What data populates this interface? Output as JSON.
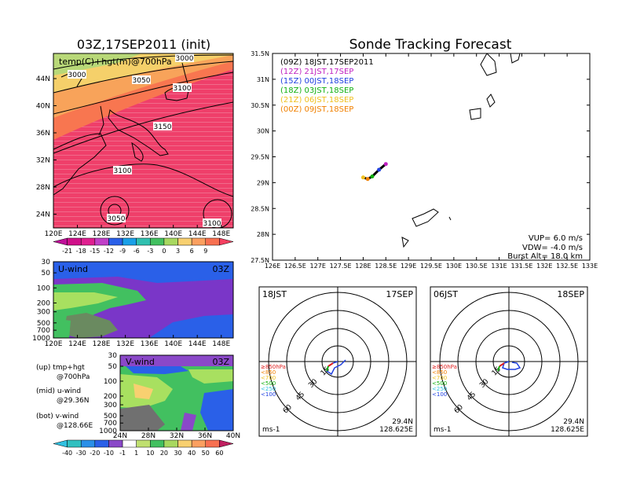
{
  "titles": {
    "left": "03Z,17SEP2011 (init)",
    "right": "Sonde Tracking Forecast"
  },
  "top_map": {
    "label": "temp(C)+hgt(m)@700hPa",
    "lon_ticks": [
      "120E",
      "124E",
      "128E",
      "132E",
      "136E",
      "140E",
      "144E",
      "148E"
    ],
    "lat_ticks": [
      "44N",
      "40N",
      "36N",
      "32N",
      "28N",
      "24N"
    ],
    "contour_labels": [
      "3000",
      "3000",
      "3050",
      "3100",
      "3150",
      "3100",
      "3050",
      "3100"
    ],
    "colorbar_labels": [
      "-21",
      "-18",
      "-15",
      "-12",
      "-9",
      "-6",
      "-3",
      "0",
      "3",
      "6",
      "9"
    ]
  },
  "uwind": {
    "label": "U-wind",
    "time": "03Z",
    "p_ticks": [
      "30",
      "50",
      "100",
      "200",
      "300",
      "500",
      "700",
      "1000"
    ],
    "lon_ticks": [
      "120E",
      "124E",
      "128E",
      "132E",
      "136E",
      "140E",
      "144E",
      "148E"
    ]
  },
  "vwind": {
    "label": "V-wind",
    "time": "03Z",
    "p_ticks": [
      "30",
      "50",
      "100",
      "200",
      "300",
      "500",
      "700",
      "1000"
    ],
    "lat_ticks": [
      "24N",
      "28N",
      "32N",
      "36N",
      "40N"
    ]
  },
  "notes": {
    "up1": "(up) tmp+hgt",
    "up2": "@700hPa",
    "mid1": "(mid) u-wind",
    "mid2": "@29.36N",
    "bot1": "(bot) v-wind",
    "bot2": "@128.66E"
  },
  "wind_colorbar_labels": [
    "-40",
    "-30",
    "-20",
    "-10",
    "-1",
    "1",
    "10",
    "20",
    "30",
    "40",
    "50",
    "60"
  ],
  "track_map": {
    "lon_ticks": [
      "126E",
      "126.5E",
      "127E",
      "127.5E",
      "128E",
      "128.5E",
      "129E",
      "129.5E",
      "130E",
      "130.5E",
      "131E",
      "131.5E",
      "132E",
      "132.5E",
      "133E"
    ],
    "lat_ticks": [
      "31.5N",
      "31N",
      "30.5N",
      "30N",
      "29.5N",
      "29N",
      "28.5N",
      "28N",
      "27.5N"
    ],
    "legend": [
      {
        "text": "(09Z) 18JST,17SEP2011",
        "color": "#000000"
      },
      {
        "text": "(12Z) 21JST,17SEP",
        "color": "#c020c0"
      },
      {
        "text": "(15Z) 00JST,18SEP",
        "color": "#2040e0"
      },
      {
        "text": "(18Z) 03JST,18SEP",
        "color": "#10b010"
      },
      {
        "text": "(21Z) 06JST,18SEP",
        "color": "#f0c020"
      },
      {
        "text": "(00Z) 09JST,18SEP",
        "color": "#f08000"
      }
    ],
    "params": [
      "VUP=  6.0  m/s",
      "VDW= -4.0  m/s",
      "Burst Alt=  18.0  km"
    ]
  },
  "hodographs": [
    {
      "time": "18JST",
      "date": "17SEP",
      "lat": "29.4N",
      "lon": "128.625E",
      "unit": "ms-1",
      "rings": [
        "15",
        "30",
        "45",
        "60"
      ],
      "legend": [
        "≥850hPa",
        "<850",
        "<700",
        "<500",
        "<250",
        "<100"
      ]
    },
    {
      "time": "06JST",
      "date": "18SEP",
      "lat": "29.4N",
      "lon": "128.625E",
      "unit": "ms-1",
      "rings": [
        "15",
        "30",
        "45",
        "60"
      ],
      "legend": [
        "≥850hPa",
        "<850",
        "<700",
        "<500",
        "<250",
        "<100"
      ]
    }
  ],
  "chart_data": [
    {
      "type": "heatmap",
      "title": "03Z,17SEP2011 (init)",
      "label": "temp(C)+hgt(m)@700hPa",
      "xlim": [
        120,
        150
      ],
      "ylim": [
        22,
        48
      ],
      "colorbar": [
        -21,
        -18,
        -15,
        -12,
        -9,
        -6,
        -3,
        0,
        3,
        6,
        9
      ],
      "contours": [
        3000,
        3050,
        3100,
        3150
      ]
    },
    {
      "type": "heatmap",
      "label": "U-wind",
      "xlim": [
        120,
        150
      ],
      "ylim": [
        1000,
        30
      ],
      "yscale": "log"
    },
    {
      "type": "heatmap",
      "label": "V-wind",
      "xlim": [
        24,
        40
      ],
      "ylim": [
        1000,
        30
      ],
      "yscale": "log"
    },
    {
      "type": "line",
      "title": "Sonde Tracking Forecast",
      "xlim": [
        126,
        133
      ],
      "ylim": [
        27.5,
        31.5
      ],
      "series": [
        {
          "name": "(09Z) 18JST,17SEP2011",
          "x": [
            128.0,
            128.1,
            128.2,
            128.35,
            128.5
          ],
          "y": [
            29.1,
            29.07,
            29.12,
            29.25,
            29.36
          ]
        }
      ]
    }
  ],
  "colors": {
    "band1": "#f54060",
    "band2": "#f87050",
    "band3": "#fba060",
    "band4": "#f8d070",
    "band5": "#e03080"
  }
}
